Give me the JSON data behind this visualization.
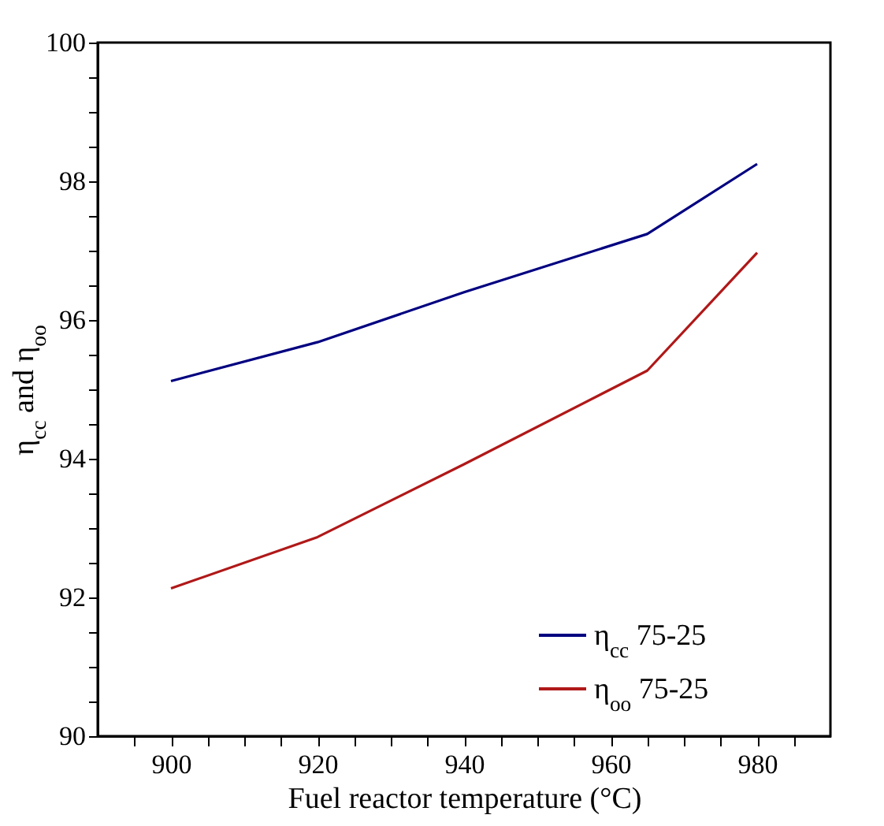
{
  "chart_data": {
    "type": "line",
    "xlabel": "Fuel reactor temperature (°C)",
    "ylabel": "η$_{cc}$ and η$_{oo}$",
    "x": [
      900,
      920,
      940,
      965,
      980
    ],
    "series": [
      {
        "name": "η$_{cc}$  75-25",
        "color": "#000080",
        "values": [
          95.12,
          95.68,
          96.4,
          97.24,
          98.25
        ]
      },
      {
        "name": "η$_{oo}$  75-25",
        "color": "#b01818",
        "values": [
          92.13,
          92.87,
          93.92,
          95.27,
          96.97
        ]
      }
    ],
    "xlim": [
      890,
      990
    ],
    "xticks": [
      {
        "value": 895,
        "label": null
      },
      900,
      {
        "value": 905,
        "label": null
      },
      {
        "value": 910,
        "label": null
      },
      {
        "value": 915,
        "label": null
      },
      920,
      {
        "value": 925,
        "label": null
      },
      {
        "value": 930,
        "label": null
      },
      {
        "value": 935,
        "label": null
      },
      940,
      {
        "value": 945,
        "label": null
      },
      {
        "value": 950,
        "label": null
      },
      {
        "value": 955,
        "label": null
      },
      960,
      {
        "value": 965,
        "label": null
      },
      {
        "value": 970,
        "label": null
      },
      {
        "value": 975,
        "label": null
      },
      980,
      {
        "value": 985,
        "label": null
      }
    ],
    "ylim": [
      90,
      100
    ],
    "yticks": [
      90,
      {
        "value": 90.5,
        "label": null
      },
      {
        "value": 91,
        "label": null
      },
      {
        "value": 91.5,
        "label": null
      },
      92,
      {
        "value": 92.5,
        "label": null
      },
      {
        "value": 93,
        "label": null
      },
      {
        "value": 93.5,
        "label": null
      },
      94,
      {
        "value": 94.5,
        "label": null
      },
      {
        "value": 95,
        "label": null
      },
      {
        "value": 95.5,
        "label": null
      },
      96,
      {
        "value": 96.5,
        "label": null
      },
      {
        "value": 97,
        "label": null
      },
      {
        "value": 97.5,
        "label": null
      },
      98,
      {
        "value": 98.5,
        "label": null
      },
      {
        "value": 99,
        "label": null
      },
      {
        "value": 99.5,
        "label": null
      },
      100
    ],
    "legend": "bottom right",
    "grid": false,
    "marker": "none",
    "line_style": "solid"
  }
}
